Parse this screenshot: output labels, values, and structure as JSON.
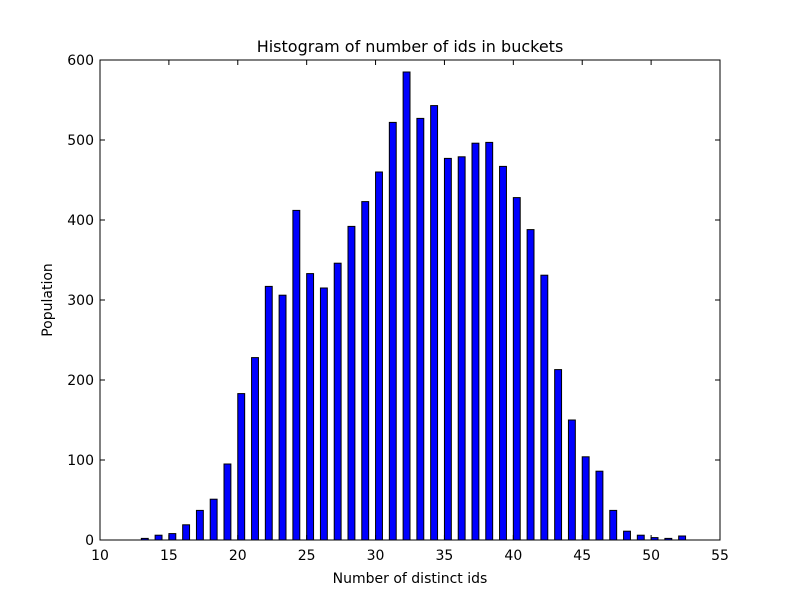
{
  "chart_data": {
    "type": "bar",
    "title": "Histogram of number of ids in buckets",
    "xlabel": "Number of distinct ids",
    "ylabel": "Population",
    "xlim": [
      10,
      55
    ],
    "ylim": [
      0,
      600
    ],
    "xticks": [
      10,
      15,
      20,
      25,
      30,
      35,
      40,
      45,
      50,
      55
    ],
    "yticks": [
      0,
      100,
      200,
      300,
      400,
      500,
      600
    ],
    "grid": false,
    "bar_color": "#0000ff",
    "edge_color": "#000000",
    "bars": [
      {
        "x": 13,
        "value": 2
      },
      {
        "x": 14,
        "value": 6
      },
      {
        "x": 15,
        "value": 8
      },
      {
        "x": 16,
        "value": 19
      },
      {
        "x": 17,
        "value": 37
      },
      {
        "x": 18,
        "value": 51
      },
      {
        "x": 19,
        "value": 95
      },
      {
        "x": 20,
        "value": 183
      },
      {
        "x": 21,
        "value": 228
      },
      {
        "x": 22,
        "value": 317
      },
      {
        "x": 23,
        "value": 306
      },
      {
        "x": 24,
        "value": 412
      },
      {
        "x": 25,
        "value": 333
      },
      {
        "x": 26,
        "value": 315
      },
      {
        "x": 27,
        "value": 346
      },
      {
        "x": 28,
        "value": 392
      },
      {
        "x": 29,
        "value": 423
      },
      {
        "x": 30,
        "value": 460
      },
      {
        "x": 31,
        "value": 522
      },
      {
        "x": 32,
        "value": 585
      },
      {
        "x": 33,
        "value": 527
      },
      {
        "x": 34,
        "value": 543
      },
      {
        "x": 35,
        "value": 477
      },
      {
        "x": 36,
        "value": 479
      },
      {
        "x": 37,
        "value": 496
      },
      {
        "x": 38,
        "value": 497
      },
      {
        "x": 39,
        "value": 467
      },
      {
        "x": 40,
        "value": 428
      },
      {
        "x": 41,
        "value": 388
      },
      {
        "x": 42,
        "value": 331
      },
      {
        "x": 43,
        "value": 213
      },
      {
        "x": 44,
        "value": 150
      },
      {
        "x": 45,
        "value": 104
      },
      {
        "x": 46,
        "value": 86
      },
      {
        "x": 47,
        "value": 37
      },
      {
        "x": 48,
        "value": 11
      },
      {
        "x": 49,
        "value": 6
      },
      {
        "x": 50,
        "value": 3
      },
      {
        "x": 51,
        "value": 2
      },
      {
        "x": 52,
        "value": 5
      }
    ]
  }
}
